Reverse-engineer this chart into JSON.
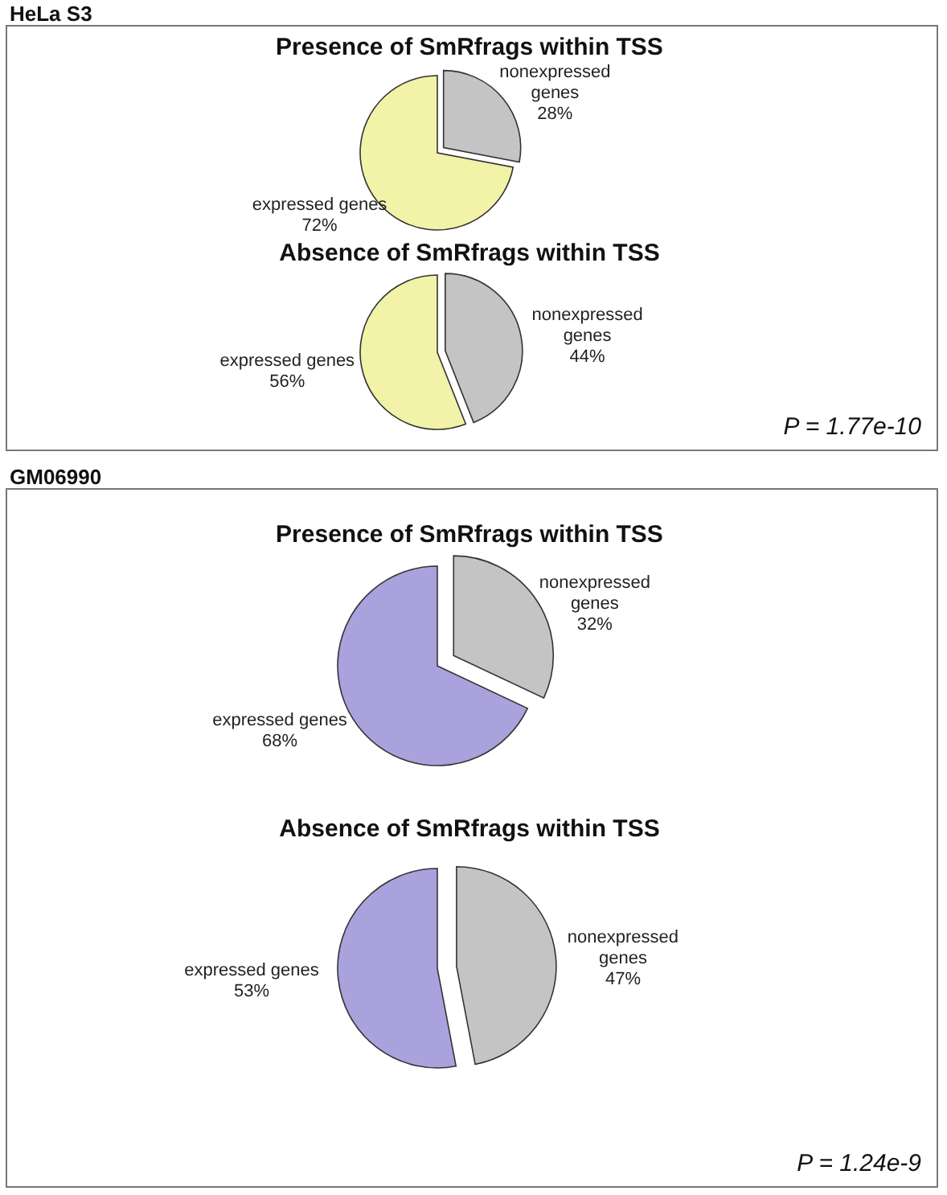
{
  "chart_data": [
    {
      "type": "pie",
      "title": "Presence of SmRfrags within TSS",
      "annotations": [
        "HeLa S3"
      ],
      "categories": [
        "expressed genes",
        "nonexpressed genes"
      ],
      "values": [
        72,
        28
      ],
      "value_labels": [
        "72%",
        "28%"
      ],
      "colors": [
        "#f2f2a8",
        "#c4c4c4"
      ]
    },
    {
      "type": "pie",
      "title": "Absence of SmRfrags within TSS",
      "annotations": [
        "P = 1.77e-10"
      ],
      "categories": [
        "expressed genes",
        "nonexpressed genes"
      ],
      "values": [
        56,
        44
      ],
      "value_labels": [
        "56%",
        "44%"
      ],
      "colors": [
        "#f2f2a8",
        "#c4c4c4"
      ]
    },
    {
      "type": "pie",
      "title": "Presence of SmRfrags within TSS",
      "annotations": [
        "GM06990"
      ],
      "categories": [
        "expressed genes",
        "nonexpressed genes"
      ],
      "values": [
        68,
        32
      ],
      "value_labels": [
        "68%",
        "32%"
      ],
      "colors": [
        "#a9a2dc",
        "#c4c4c4"
      ]
    },
    {
      "type": "pie",
      "title": "Absence of SmRfrags within TSS",
      "annotations": [
        "P = 1.24e-9"
      ],
      "categories": [
        "expressed genes",
        "nonexpressed genes"
      ],
      "values": [
        53,
        47
      ],
      "value_labels": [
        "53%",
        "47%"
      ],
      "colors": [
        "#a9a2dc",
        "#c4c4c4"
      ]
    }
  ]
}
